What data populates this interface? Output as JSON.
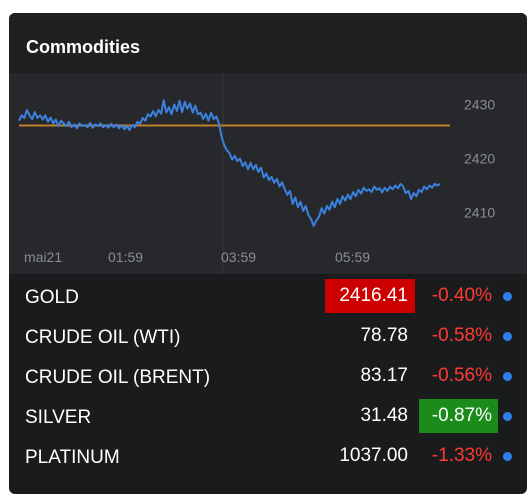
{
  "widget": {
    "title": "Commodities"
  },
  "chart_data": {
    "type": "line",
    "x_tick_labels": [
      "mai21",
      "01:59",
      "03:59",
      "05:59"
    ],
    "y_tick_labels": [
      "2430",
      "2420",
      "2410"
    ],
    "yticks": [
      2430,
      2420,
      2410
    ],
    "ylim": [
      2406.5,
      2433.5
    ],
    "reference_value": 2426.1,
    "reference_color": "#c0802a",
    "line_color": "#3b82e0",
    "series": [
      {
        "values": [
          2427.0,
          2428.0,
          2427.5,
          2429.0,
          2428.0,
          2427.3,
          2428.6,
          2427.5,
          2428.0,
          2427.2,
          2428.0,
          2426.8,
          2427.6,
          2426.5,
          2427.2,
          2426.0,
          2427.0,
          2426.5,
          2426.0,
          2426.8,
          2425.8,
          2426.3,
          2425.6,
          2426.5,
          2426.0,
          2426.2,
          2425.8,
          2426.6,
          2425.7,
          2426.3,
          2426.0,
          2426.5,
          2425.8,
          2426.2,
          2425.7,
          2426.4,
          2425.8,
          2426.3,
          2425.6,
          2426.2,
          2425.4,
          2426.0,
          2425.3,
          2426.2,
          2425.8,
          2426.8,
          2426.4,
          2427.5,
          2427.0,
          2428.2,
          2427.8,
          2428.8,
          2427.8,
          2429.0,
          2428.3,
          2430.8,
          2428.5,
          2429.5,
          2428.2,
          2430.0,
          2428.8,
          2430.7,
          2428.6,
          2430.5,
          2429.2,
          2430.2,
          2428.5,
          2429.8,
          2428.2,
          2428.5,
          2427.3,
          2428.3,
          2427.0,
          2428.5,
          2427.3,
          2427.8,
          2426.5,
          2424.0,
          2422.5,
          2421.5,
          2421.0,
          2419.8,
          2420.5,
          2419.5,
          2420.0,
          2418.6,
          2419.3,
          2418.0,
          2419.2,
          2418.0,
          2418.8,
          2417.5,
          2418.3,
          2416.5,
          2417.2,
          2416.0,
          2416.6,
          2415.5,
          2416.2,
          2414.8,
          2415.6,
          2414.3,
          2413.3,
          2414.0,
          2411.6,
          2412.8,
          2411.0,
          2412.0,
          2410.3,
          2411.2,
          2409.5,
          2408.8,
          2407.5,
          2408.5,
          2409.2,
          2410.8,
          2409.8,
          2411.2,
          2410.5,
          2412.0,
          2411.0,
          2412.5,
          2411.6,
          2413.0,
          2412.2,
          2413.3,
          2412.5,
          2413.8,
          2413.0,
          2414.2,
          2413.5,
          2414.6,
          2414.0,
          2414.3,
          2413.8,
          2414.8,
          2414.2,
          2414.5,
          2413.7,
          2414.6,
          2414.0,
          2414.8,
          2414.3,
          2415.0,
          2414.5,
          2415.3,
          2414.8,
          2413.6,
          2414.0,
          2412.5,
          2413.6,
          2413.0,
          2414.2,
          2413.8,
          2414.8,
          2414.3,
          2415.0,
          2414.6,
          2415.3,
          2415.0,
          2415.3
        ]
      }
    ]
  },
  "rows": [
    {
      "name": "GOLD",
      "price": "2416.41",
      "change": "-0.40%"
    },
    {
      "name": "CRUDE OIL (WTI)",
      "price": "78.78",
      "change": "-0.58%"
    },
    {
      "name": "CRUDE OIL (BRENT)",
      "price": "83.17",
      "change": "-0.56%"
    },
    {
      "name": "SILVER",
      "price": "31.48",
      "change": "-0.87%"
    },
    {
      "name": "PLATINUM",
      "price": "1037.00",
      "change": "-1.33%"
    }
  ],
  "colors": {
    "panel_bg": "#1a1b1d",
    "chart_bg": "#26282b",
    "negative": "#ff3b30",
    "price_flash_red": "#cc0000",
    "change_flash_green": "#1b8c1b",
    "dot": "#2f80ed"
  }
}
